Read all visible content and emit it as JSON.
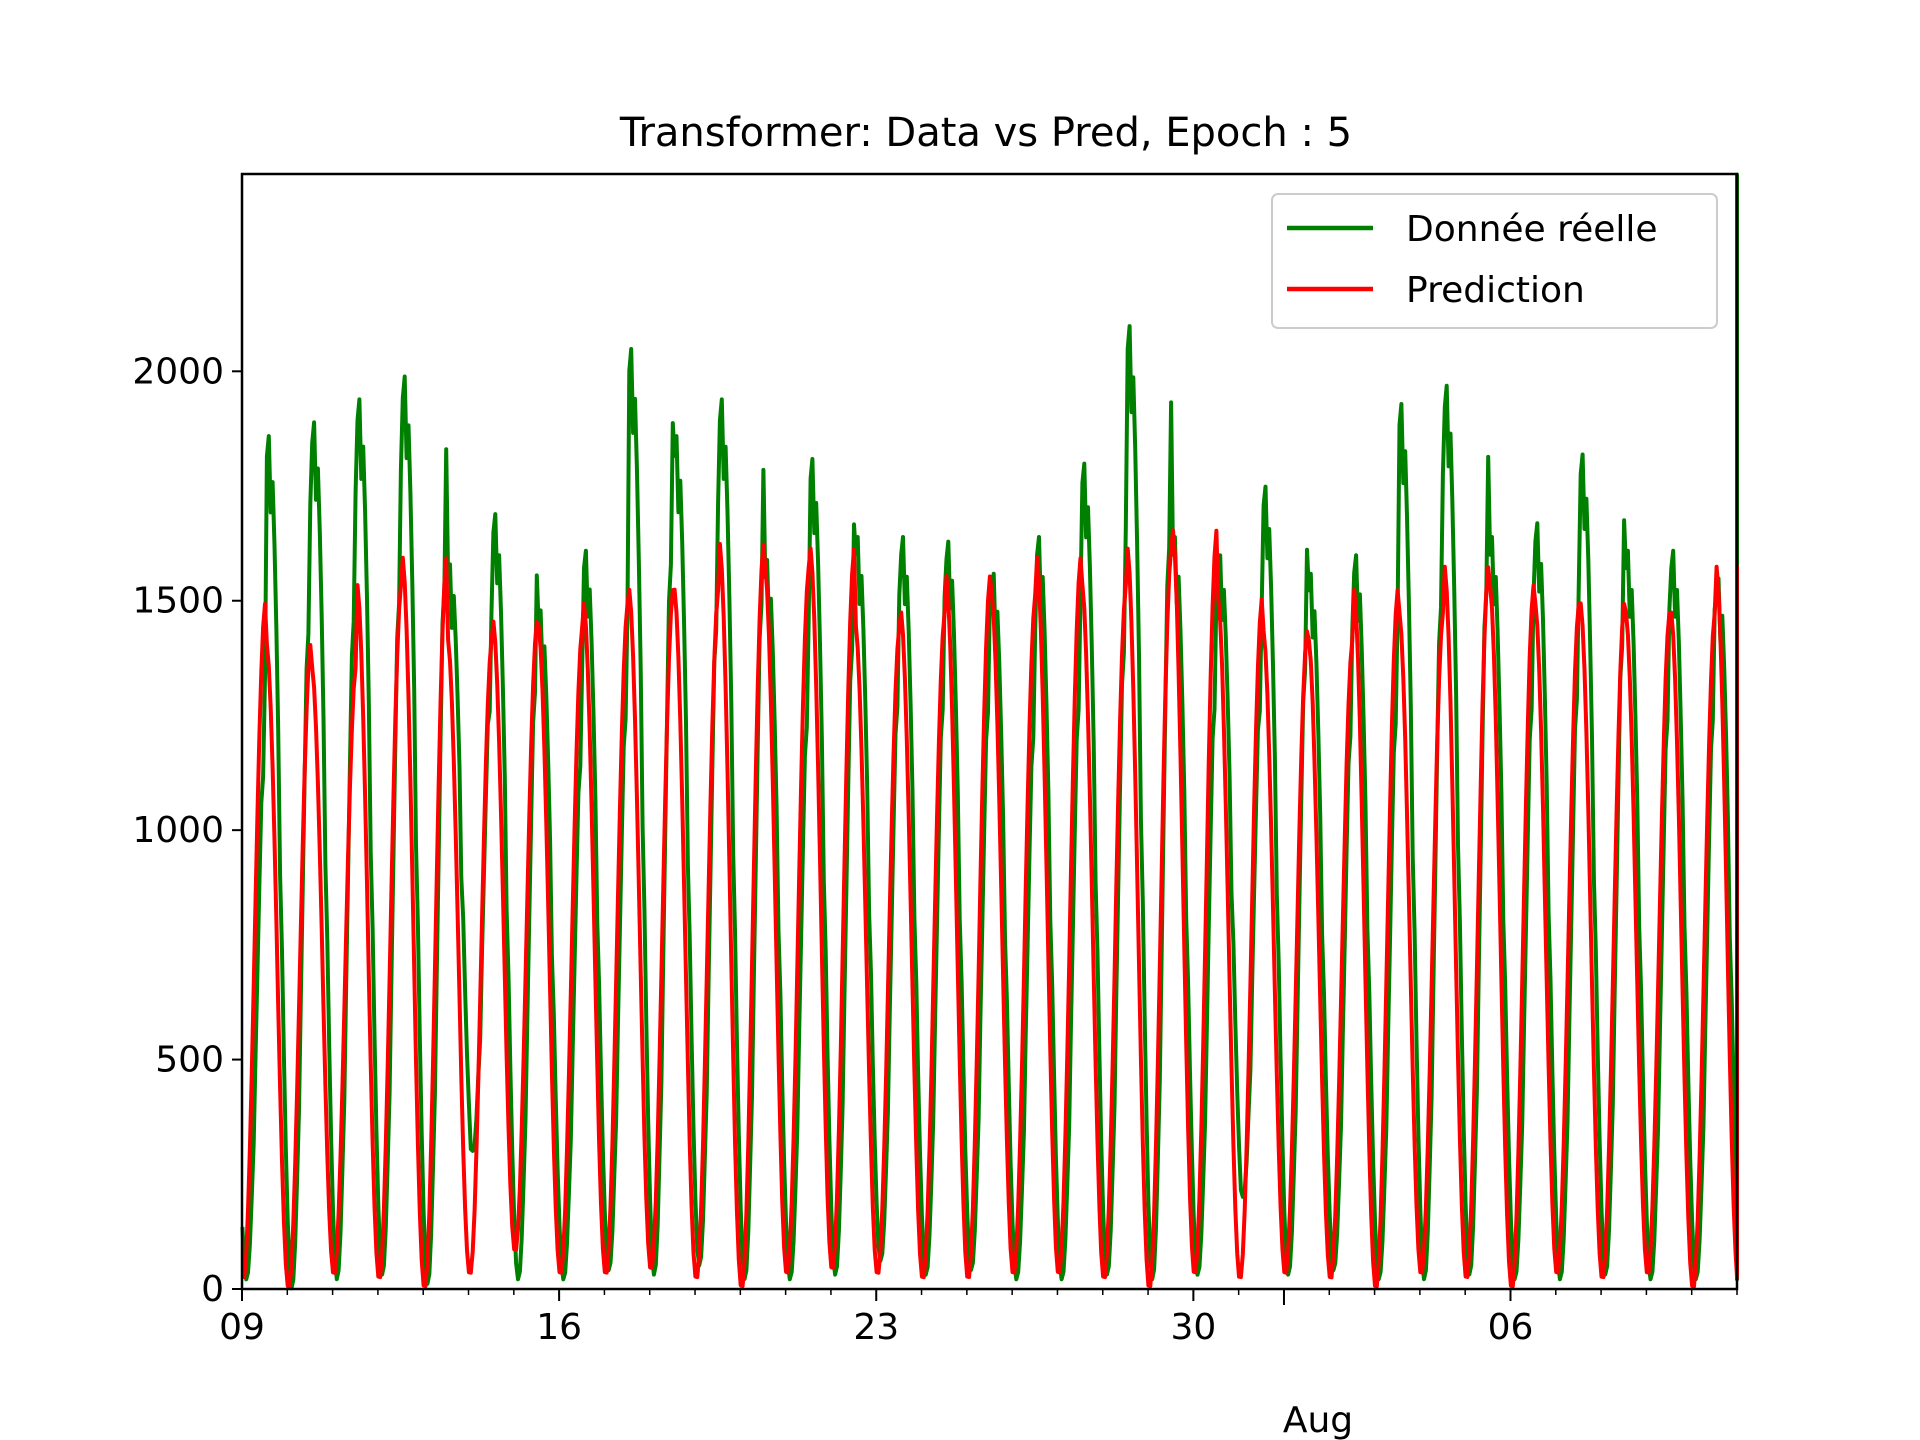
{
  "chart_data": {
    "type": "line",
    "title": "Transformer: Data vs Pred, Epoch : 5",
    "xlabel": "",
    "ylabel": "",
    "x_type": "time",
    "x_range": [
      "07-09",
      "08-11"
    ],
    "ylim": [
      0,
      2430
    ],
    "yticks": [
      0,
      500,
      1000,
      1500,
      2000
    ],
    "ytick_labels": [
      "0",
      "500",
      "1000",
      "1500",
      "2000"
    ],
    "xticks": [
      "07-09",
      "07-16",
      "07-23",
      "07-30",
      "08-06"
    ],
    "xtick_labels": [
      "09",
      "16",
      "23",
      "30",
      "06"
    ],
    "xminor_label": "Aug",
    "legend_position": "top-right",
    "grid": false,
    "series": [
      {
        "name": "Donnée réelle",
        "color": "#008000",
        "peaks": [
          1450,
          1860,
          1890,
          1940,
          1990,
          1580,
          1690,
          1480,
          1610,
          2050,
          1860,
          1940,
          1590,
          1810,
          1640,
          1640,
          1630,
          1560,
          1640,
          1800,
          2100,
          1640,
          1600,
          1750,
          1560,
          1600,
          1930,
          1970,
          1640,
          1670,
          1820,
          1610,
          1610,
          1550,
          1620,
          2430
        ],
        "troughs": [
          20,
          0,
          20,
          30,
          10,
          300,
          20,
          20,
          40,
          30,
          50,
          20,
          20,
          30,
          60,
          30,
          40,
          20,
          20,
          30,
          20,
          30,
          200,
          30,
          40,
          20,
          20,
          30,
          20,
          20,
          30,
          20,
          20,
          30,
          20,
          300
        ]
      },
      {
        "name": "Prediction",
        "color": "#ff0000",
        "peaks": [
          1500,
          1410,
          1360,
          1540,
          1600,
          1420,
          1460,
          1450,
          1500,
          1530,
          1530,
          1630,
          1580,
          1620,
          1450,
          1480,
          1560,
          1520,
          1600,
          1540,
          1620,
          1660,
          1510,
          1440,
          1420,
          1530,
          1480,
          1580,
          1540,
          1500,
          1500,
          1480,
          1480,
          1580,
          1580,
          1500
        ],
        "troughs": [
          20,
          0,
          30,
          20,
          0,
          30,
          80,
          30,
          30,
          40,
          20,
          0,
          30,
          40,
          30,
          20,
          20,
          30,
          30,
          20,
          0,
          30,
          20,
          30,
          20,
          0,
          30,
          20,
          0,
          30,
          20,
          30,
          0,
          20,
          30,
          20
        ]
      }
    ]
  }
}
